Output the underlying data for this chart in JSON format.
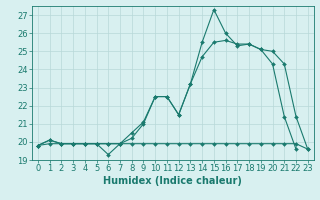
{
  "xlabel": "Humidex (Indice chaleur)",
  "x_values": [
    0,
    1,
    2,
    3,
    4,
    5,
    6,
    7,
    8,
    9,
    10,
    11,
    12,
    13,
    14,
    15,
    16,
    17,
    18,
    19,
    20,
    21,
    22,
    23
  ],
  "line1": [
    19.8,
    20.1,
    19.9,
    19.9,
    19.9,
    19.9,
    19.3,
    19.9,
    20.5,
    21.1,
    22.5,
    22.5,
    21.5,
    23.2,
    25.5,
    27.3,
    26.0,
    25.3,
    25.4,
    25.1,
    25.0,
    24.3,
    21.4,
    19.6
  ],
  "line2": [
    19.8,
    20.1,
    19.9,
    19.9,
    19.9,
    19.9,
    19.9,
    19.9,
    20.2,
    21.0,
    22.5,
    22.5,
    21.5,
    23.2,
    24.7,
    25.5,
    25.6,
    25.4,
    25.4,
    25.1,
    24.3,
    21.4,
    19.6,
    null
  ],
  "line3": [
    19.8,
    19.9,
    19.9,
    19.9,
    19.9,
    19.9,
    19.9,
    19.9,
    19.9,
    19.9,
    19.9,
    19.9,
    19.9,
    19.9,
    19.9,
    19.9,
    19.9,
    19.9,
    19.9,
    19.9,
    19.9,
    19.9,
    19.9,
    19.6
  ],
  "line_color": "#1a7a6e",
  "bg_color": "#d8f0f0",
  "grid_color": "#b8d8d8",
  "ylim": [
    19,
    27.5
  ],
  "yticks": [
    19,
    20,
    21,
    22,
    23,
    24,
    25,
    26,
    27
  ],
  "xticks": [
    0,
    1,
    2,
    3,
    4,
    5,
    6,
    7,
    8,
    9,
    10,
    11,
    12,
    13,
    14,
    15,
    16,
    17,
    18,
    19,
    20,
    21,
    22,
    23
  ],
  "tick_fontsize": 6,
  "xlabel_fontsize": 7,
  "markersize": 2.0,
  "linewidth": 0.8
}
